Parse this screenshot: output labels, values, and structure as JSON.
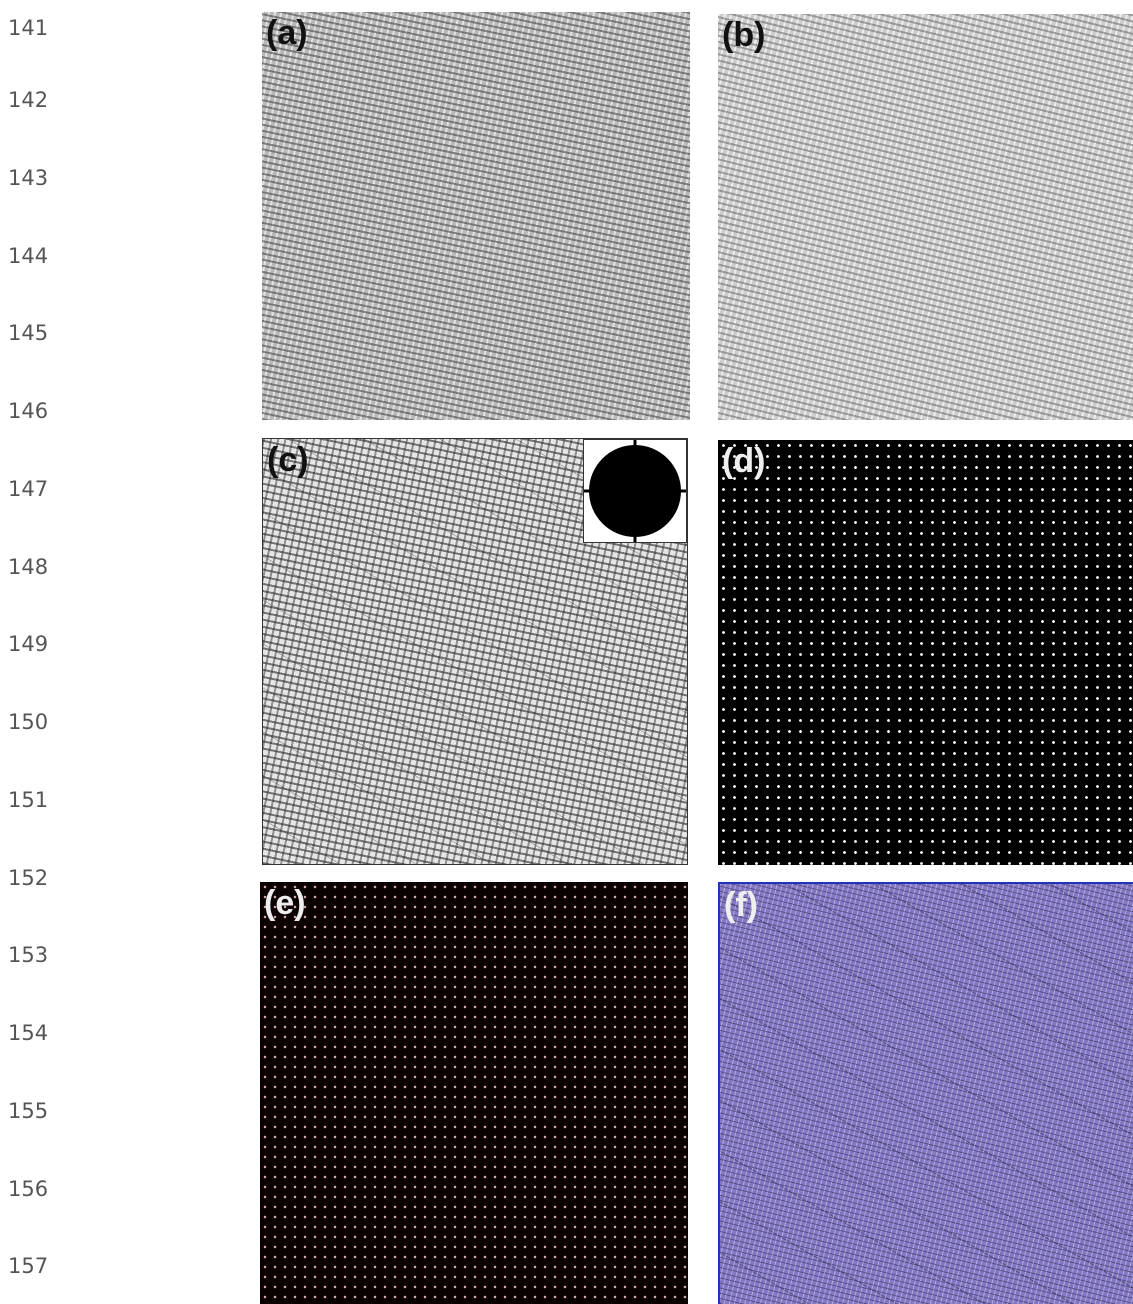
{
  "line_numbers": [
    "141",
    "142",
    "143",
    "144",
    "145",
    "146",
    "147",
    "148",
    "149",
    "150",
    "151",
    "152",
    "153",
    "154",
    "155",
    "156",
    "157"
  ],
  "figure": {
    "panels": [
      {
        "label": "(a)"
      },
      {
        "label": "(b)"
      },
      {
        "label": "(c)"
      },
      {
        "label": "(d)"
      },
      {
        "label": "(e)"
      },
      {
        "label": "(f)"
      }
    ]
  }
}
